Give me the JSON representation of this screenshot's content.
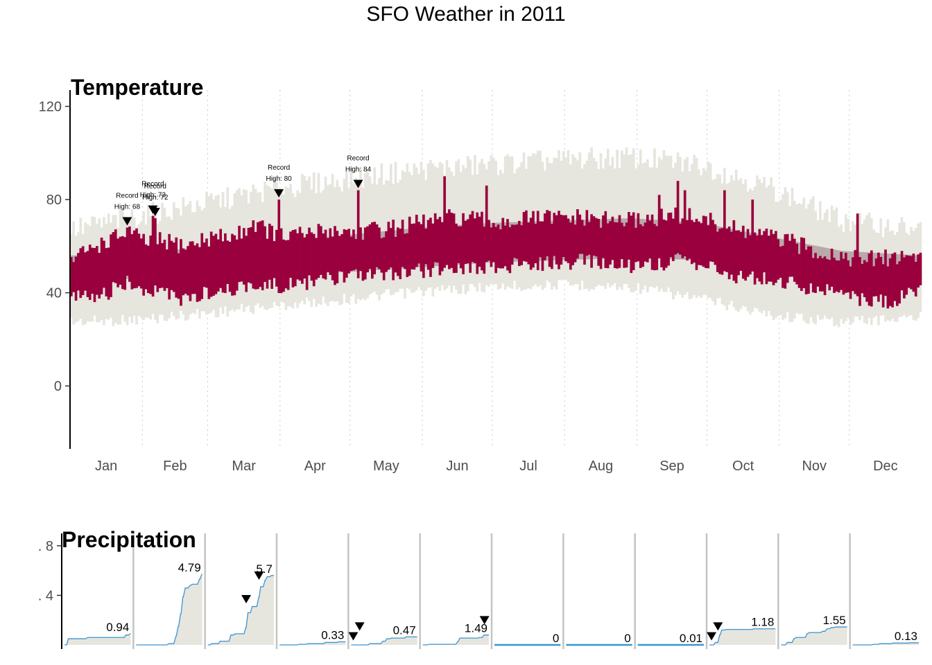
{
  "page": {
    "title": "SFO Weather in 2011"
  },
  "chart_data": [
    {
      "type": "bar",
      "subtype": "floating-range-bars",
      "title": "Temperature",
      "ylim": [
        -27,
        127
      ],
      "yticks": [
        0,
        40,
        80,
        120
      ],
      "xlim": [
        0,
        365
      ],
      "months": [
        "Jan",
        "Feb",
        "Mar",
        "Apr",
        "May",
        "Jun",
        "Jul",
        "Aug",
        "Sep",
        "Oct",
        "Nov",
        "Dec"
      ],
      "month_starts": [
        0,
        31,
        59,
        90,
        120,
        151,
        181,
        212,
        243,
        273,
        304,
        334
      ],
      "grid": "dotted vertical lines at month boundaries",
      "layers": [
        {
          "name": "record",
          "color": "#e6e5de"
        },
        {
          "name": "normal",
          "color": "#b9a9ab"
        },
        {
          "name": "2011",
          "color": "#99003d"
        }
      ],
      "normal_band": {
        "day": [
          0,
          30,
          60,
          90,
          120,
          150,
          180,
          210,
          240,
          270,
          300,
          330,
          364
        ],
        "low": [
          46,
          46,
          47,
          48,
          49,
          51,
          53,
          54,
          55,
          54,
          50,
          47,
          46
        ],
        "high": [
          56,
          57,
          60,
          62,
          65,
          68,
          70,
          71,
          72,
          70,
          64,
          58,
          56
        ]
      },
      "record_band": {
        "day": [
          0,
          30,
          60,
          90,
          120,
          150,
          180,
          210,
          240,
          270,
          300,
          330,
          364
        ],
        "low": [
          30,
          31,
          34,
          37,
          40,
          43,
          45,
          46,
          45,
          40,
          33,
          30,
          32
        ],
        "high": [
          66,
          72,
          78,
          84,
          88,
          92,
          94,
          96,
          97,
          94,
          84,
          70,
          66
        ]
      },
      "daily_2011": {
        "day": [
          0,
          10,
          20,
          25,
          30,
          40,
          50,
          60,
          70,
          78,
          82,
          90,
          100,
          110,
          120,
          130,
          140,
          150,
          160,
          170,
          180,
          190,
          200,
          210,
          220,
          230,
          240,
          250,
          260,
          270,
          280,
          290,
          300,
          310,
          320,
          330,
          340,
          350,
          364
        ],
        "low": [
          43,
          40,
          46,
          48,
          42,
          44,
          40,
          44,
          45,
          48,
          47,
          46,
          48,
          49,
          50,
          51,
          52,
          53,
          54,
          55,
          54,
          55,
          56,
          56,
          57,
          56,
          55,
          56,
          57,
          56,
          52,
          50,
          49,
          47,
          45,
          44,
          40,
          39,
          44
        ],
        "high": [
          50,
          56,
          60,
          63,
          58,
          58,
          56,
          60,
          60,
          66,
          64,
          60,
          61,
          63,
          62,
          63,
          64,
          66,
          68,
          68,
          66,
          67,
          68,
          68,
          68,
          67,
          67,
          68,
          69,
          68,
          64,
          62,
          60,
          57,
          54,
          52,
          50,
          51,
          52
        ]
      },
      "annotations": [
        {
          "day": 24,
          "value": 68,
          "line1": "Record",
          "line2": "High: 68"
        },
        {
          "day": 35,
          "value": 73,
          "line1": "Record",
          "line2": "High: 73"
        },
        {
          "day": 36,
          "value": 72,
          "line1": "Record",
          "line2": "High: 72"
        },
        {
          "day": 89,
          "value": 80,
          "line1": "Record",
          "line2": "High: 80"
        },
        {
          "day": 123,
          "value": 84,
          "line1": "Record",
          "line2": "High: 84"
        }
      ]
    },
    {
      "type": "area",
      "subtype": "cumulative-monthly-small-multiples",
      "title": "Precipitation",
      "ylim": [
        0,
        0.9
      ],
      "yticks": [
        0.4,
        0.8
      ],
      "ytick_labels": [
        ". 4",
        ". 8"
      ],
      "area_color": "#e6e5de",
      "line_color": "#3a95d0",
      "months": [
        {
          "total_label": "0.94",
          "steps": [
            [
              1,
              0.05
            ],
            [
              10,
              0.01
            ],
            [
              28,
              0.02
            ],
            [
              30,
              0.01
            ]
          ],
          "records": []
        },
        {
          "total_label": "4.79",
          "steps": [
            [
              13,
              0.01
            ],
            [
              16,
              0.06
            ],
            [
              17,
              0.08
            ],
            [
              18,
              0.1
            ],
            [
              19,
              0.14
            ],
            [
              20,
              0.07
            ],
            [
              22,
              0.02
            ],
            [
              23,
              0.01
            ],
            [
              26,
              0.04
            ],
            [
              27,
              0.04
            ]
          ],
          "records": []
        },
        {
          "total_label": "5.7",
          "steps": [
            [
              1,
              0.01
            ],
            [
              5,
              0.02
            ],
            [
              10,
              0.05
            ],
            [
              12,
              0.01
            ],
            [
              17,
              0.05
            ],
            [
              18,
              0.12
            ],
            [
              20,
              0.05
            ],
            [
              23,
              0.07
            ],
            [
              24,
              0.09
            ],
            [
              26,
              0.05
            ],
            [
              27,
              0.03
            ],
            [
              29,
              0.01
            ]
          ],
          "records": [
            {
              "day": 18,
              "value": 0.33
            },
            {
              "day": 24,
              "value": 0.52
            }
          ]
        },
        {
          "total_label": "0.33",
          "steps": [
            [
              8,
              0.005
            ],
            [
              12,
              0.005
            ],
            [
              20,
              0.01
            ],
            [
              26,
              0.005
            ]
          ],
          "records": []
        },
        {
          "total_label": "0.47",
          "steps": [
            [
              8,
              0.01
            ],
            [
              14,
              0.02
            ],
            [
              16,
              0.02
            ],
            [
              18,
              0.005
            ],
            [
              25,
              0.01
            ]
          ],
          "records": [
            {
              "day": 1,
              "value": 0.03
            },
            {
              "day": 4,
              "value": 0.11
            }
          ]
        },
        {
          "total_label": "1.49",
          "steps": [
            [
              2,
              0.005
            ],
            [
              15,
              0.02
            ],
            [
              16,
              0.03
            ],
            [
              25,
              0.005
            ],
            [
              27,
              0.02
            ]
          ],
          "records": [
            {
              "day": 28,
              "value": 0.16
            }
          ]
        },
        {
          "total_label": "0",
          "steps": [],
          "records": []
        },
        {
          "total_label": "0",
          "steps": [],
          "records": []
        },
        {
          "total_label": "0.01",
          "steps": [
            [
              26,
              0.001
            ]
          ],
          "records": []
        },
        {
          "total_label": "1.18",
          "steps": [
            [
              2,
              0.02
            ],
            [
              4,
              0.06
            ],
            [
              5,
              0.04
            ],
            [
              7,
              0.005
            ],
            [
              20,
              0.005
            ]
          ],
          "records": [
            {
              "day": 1,
              "value": 0.03
            },
            {
              "day": 4,
              "value": 0.11
            }
          ]
        },
        {
          "total_label": "1.55",
          "steps": [
            [
              2,
              0.02
            ],
            [
              5,
              0.03
            ],
            [
              6,
              0.01
            ],
            [
              11,
              0.03
            ],
            [
              12,
              0.01
            ],
            [
              18,
              0.01
            ],
            [
              20,
              0.02
            ],
            [
              22,
              0.01
            ],
            [
              24,
              0.005
            ]
          ],
          "records": []
        },
        {
          "total_label": "0.13",
          "steps": [
            [
              9,
              0.005
            ],
            [
              12,
              0.005
            ],
            [
              18,
              0.005
            ],
            [
              26,
              0.002
            ]
          ],
          "records": []
        }
      ]
    }
  ]
}
